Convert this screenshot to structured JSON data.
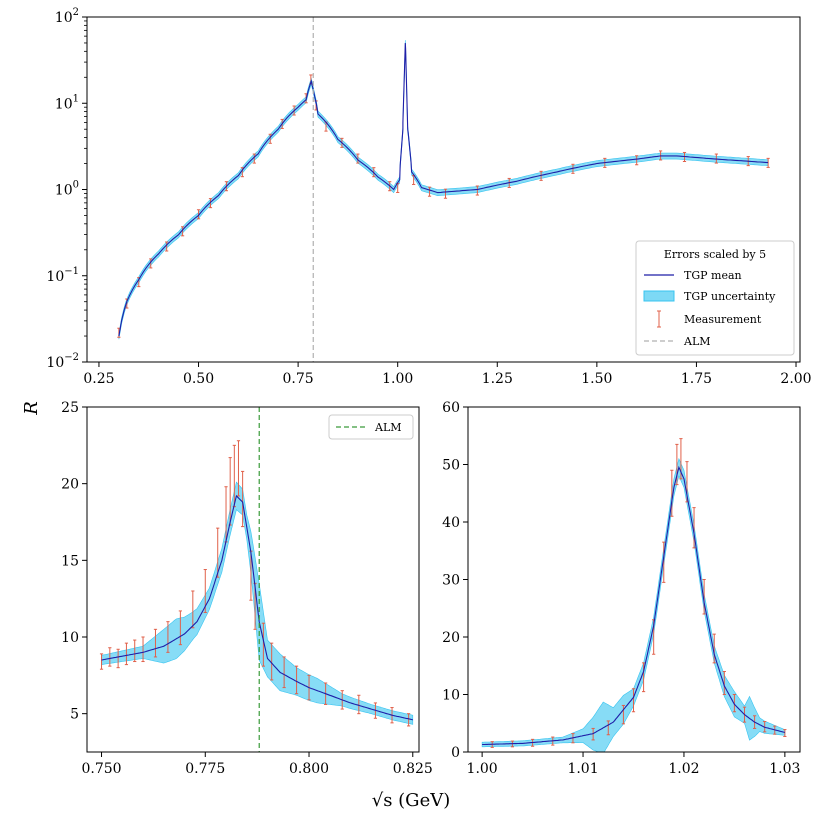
{
  "figure": {
    "ylabel": "R",
    "xlabel": "√s (GeV)"
  },
  "colors": {
    "mean": "#1f1fa8",
    "band": "#37c4f0",
    "measurement": "#e0604a",
    "alm_top": "#b0b0b0",
    "alm_bottom": "#3a9a3a"
  },
  "chart_data": [
    {
      "id": "overview",
      "type": "line",
      "yscale": "log",
      "xlim": [
        0.22,
        2.01
      ],
      "ylim": [
        0.01,
        100
      ],
      "xticks": [
        {
          "v": 0.25,
          "label": "0.25"
        },
        {
          "v": 0.5,
          "label": "0.50"
        },
        {
          "v": 0.75,
          "label": "0.75"
        },
        {
          "v": 1.0,
          "label": "1.00"
        },
        {
          "v": 1.25,
          "label": "1.25"
        },
        {
          "v": 1.5,
          "label": "1.50"
        },
        {
          "v": 1.75,
          "label": "1.75"
        },
        {
          "v": 2.0,
          "label": "2.00"
        }
      ],
      "yticks": [
        {
          "v": 0.01,
          "base": "10",
          "exp": "−2"
        },
        {
          "v": 0.1,
          "base": "10",
          "exp": "−1"
        },
        {
          "v": 1,
          "base": "10",
          "exp": "0"
        },
        {
          "v": 10,
          "base": "10",
          "exp": "1"
        },
        {
          "v": 100,
          "base": "10",
          "exp": "2"
        }
      ],
      "alm_x": 0.788,
      "mean": [
        [
          0.3,
          0.02
        ],
        [
          0.32,
          0.05
        ],
        [
          0.35,
          0.09
        ],
        [
          0.4,
          0.18
        ],
        [
          0.45,
          0.3
        ],
        [
          0.5,
          0.5
        ],
        [
          0.55,
          0.85
        ],
        [
          0.6,
          1.45
        ],
        [
          0.65,
          2.6
        ],
        [
          0.7,
          5.0
        ],
        [
          0.75,
          9.0
        ],
        [
          0.77,
          11.0
        ],
        [
          0.783,
          18.0
        ],
        [
          0.79,
          13.0
        ],
        [
          0.8,
          7.5
        ],
        [
          0.85,
          3.8
        ],
        [
          0.9,
          2.2
        ],
        [
          0.95,
          1.4
        ],
        [
          0.99,
          1.0
        ],
        [
          1.005,
          1.3
        ],
        [
          1.013,
          5.0
        ],
        [
          1.019,
          50.0
        ],
        [
          1.025,
          5.0
        ],
        [
          1.035,
          1.6
        ],
        [
          1.06,
          1.05
        ],
        [
          1.1,
          0.92
        ],
        [
          1.2,
          1.0
        ],
        [
          1.3,
          1.25
        ],
        [
          1.4,
          1.6
        ],
        [
          1.5,
          2.0
        ],
        [
          1.6,
          2.25
        ],
        [
          1.66,
          2.45
        ],
        [
          1.7,
          2.45
        ],
        [
          1.8,
          2.25
        ],
        [
          1.93,
          2.05
        ]
      ],
      "band_rel": 0.08,
      "measurements": [
        [
          0.3,
          0.022
        ],
        [
          0.32,
          0.048
        ],
        [
          0.35,
          0.085
        ],
        [
          0.38,
          0.14
        ],
        [
          0.42,
          0.22
        ],
        [
          0.46,
          0.33
        ],
        [
          0.5,
          0.52
        ],
        [
          0.53,
          0.7
        ],
        [
          0.57,
          1.1
        ],
        [
          0.61,
          1.6
        ],
        [
          0.64,
          2.3
        ],
        [
          0.68,
          3.9
        ],
        [
          0.71,
          5.8
        ],
        [
          0.74,
          8.3
        ],
        [
          0.77,
          11.5
        ],
        [
          0.782,
          19.0
        ],
        [
          0.795,
          9.5
        ],
        [
          0.82,
          5.4
        ],
        [
          0.86,
          3.5
        ],
        [
          0.9,
          2.3
        ],
        [
          0.94,
          1.6
        ],
        [
          0.98,
          1.1
        ],
        [
          1.0,
          1.05
        ],
        [
          1.04,
          1.3
        ],
        [
          1.08,
          0.95
        ],
        [
          1.12,
          0.9
        ],
        [
          1.2,
          0.98
        ],
        [
          1.28,
          1.2
        ],
        [
          1.36,
          1.45
        ],
        [
          1.44,
          1.75
        ],
        [
          1.52,
          2.05
        ],
        [
          1.6,
          2.2
        ],
        [
          1.66,
          2.5
        ],
        [
          1.72,
          2.4
        ],
        [
          1.8,
          2.3
        ],
        [
          1.88,
          2.15
        ],
        [
          1.93,
          2.05
        ]
      ],
      "legend": {
        "title": "Errors scaled by 5",
        "entries": [
          "TGP mean",
          "TGP uncertainty",
          "Measurement",
          "ALM"
        ]
      }
    },
    {
      "id": "omega",
      "type": "line",
      "yscale": "linear",
      "xlim": [
        0.7465,
        0.8265
      ],
      "ylim": [
        2.5,
        25
      ],
      "xticks": [
        {
          "v": 0.75,
          "label": "0.750"
        },
        {
          "v": 0.775,
          "label": "0.775"
        },
        {
          "v": 0.8,
          "label": "0.800"
        },
        {
          "v": 0.825,
          "label": "0.825"
        }
      ],
      "yticks": [
        {
          "v": 5,
          "label": "5"
        },
        {
          "v": 10,
          "label": "10"
        },
        {
          "v": 15,
          "label": "15"
        },
        {
          "v": 20,
          "label": "20"
        },
        {
          "v": 25,
          "label": "25"
        }
      ],
      "alm_x": 0.788,
      "mean": [
        [
          0.75,
          8.5
        ],
        [
          0.755,
          8.75
        ],
        [
          0.76,
          9.0
        ],
        [
          0.765,
          9.4
        ],
        [
          0.77,
          10.2
        ],
        [
          0.773,
          11.0
        ],
        [
          0.776,
          12.5
        ],
        [
          0.779,
          15.0
        ],
        [
          0.781,
          17.5
        ],
        [
          0.7825,
          19.2
        ],
        [
          0.784,
          18.8
        ],
        [
          0.786,
          15.5
        ],
        [
          0.788,
          11.0
        ],
        [
          0.79,
          8.6
        ],
        [
          0.793,
          7.7
        ],
        [
          0.797,
          7.1
        ],
        [
          0.8,
          6.7
        ],
        [
          0.805,
          6.2
        ],
        [
          0.81,
          5.7
        ],
        [
          0.815,
          5.3
        ],
        [
          0.82,
          4.9
        ],
        [
          0.825,
          4.6
        ]
      ],
      "band": [
        [
          0.75,
          0.3
        ],
        [
          0.76,
          0.4
        ],
        [
          0.765,
          1.1
        ],
        [
          0.768,
          1.3
        ],
        [
          0.772,
          0.9
        ],
        [
          0.776,
          0.7
        ],
        [
          0.78,
          0.8
        ],
        [
          0.7825,
          0.9
        ],
        [
          0.785,
          0.8
        ],
        [
          0.788,
          2.5
        ],
        [
          0.79,
          1.2
        ],
        [
          0.793,
          1.2
        ],
        [
          0.797,
          0.9
        ],
        [
          0.802,
          0.8
        ],
        [
          0.808,
          0.4
        ],
        [
          0.815,
          0.3
        ],
        [
          0.825,
          0.3
        ]
      ],
      "measurements": [
        [
          0.75,
          8.4,
          0.5
        ],
        [
          0.752,
          8.7,
          0.6
        ],
        [
          0.754,
          8.6,
          0.6
        ],
        [
          0.756,
          8.9,
          0.7
        ],
        [
          0.758,
          9.1,
          0.7
        ],
        [
          0.76,
          9.2,
          0.8
        ],
        [
          0.763,
          9.6,
          0.9
        ],
        [
          0.766,
          10.0,
          1.0
        ],
        [
          0.769,
          10.6,
          1.1
        ],
        [
          0.772,
          11.8,
          1.2
        ],
        [
          0.775,
          13.0,
          1.4
        ],
        [
          0.778,
          15.5,
          1.6
        ],
        [
          0.78,
          18.0,
          1.8
        ],
        [
          0.781,
          19.5,
          2.2
        ],
        [
          0.782,
          20.5,
          2.0
        ],
        [
          0.783,
          21.0,
          1.8
        ],
        [
          0.784,
          19.0,
          1.8
        ],
        [
          0.786,
          14.0,
          1.6
        ],
        [
          0.787,
          12.0,
          1.5
        ],
        [
          0.789,
          9.5,
          1.4
        ],
        [
          0.791,
          8.4,
          1.2
        ],
        [
          0.794,
          7.7,
          1.0
        ],
        [
          0.797,
          7.2,
          0.9
        ],
        [
          0.8,
          6.7,
          0.8
        ],
        [
          0.804,
          6.3,
          0.7
        ],
        [
          0.808,
          5.9,
          0.6
        ],
        [
          0.812,
          5.6,
          0.6
        ],
        [
          0.816,
          5.2,
          0.5
        ],
        [
          0.82,
          4.9,
          0.5
        ],
        [
          0.824,
          4.6,
          0.4
        ]
      ],
      "legend": {
        "entries": [
          "ALM"
        ]
      }
    },
    {
      "id": "phi",
      "type": "line",
      "yscale": "linear",
      "xlim": [
        0.9986,
        1.0315
      ],
      "ylim": [
        0,
        60
      ],
      "xticks": [
        {
          "v": 1.0,
          "label": "1.00"
        },
        {
          "v": 1.01,
          "label": "1.01"
        },
        {
          "v": 1.02,
          "label": "1.02"
        },
        {
          "v": 1.03,
          "label": "1.03"
        }
      ],
      "yticks": [
        {
          "v": 0,
          "label": "0"
        },
        {
          "v": 10,
          "label": "10"
        },
        {
          "v": 20,
          "label": "20"
        },
        {
          "v": 30,
          "label": "30"
        },
        {
          "v": 40,
          "label": "40"
        },
        {
          "v": 50,
          "label": "50"
        },
        {
          "v": 60,
          "label": "60"
        }
      ],
      "mean": [
        [
          1.0,
          1.3
        ],
        [
          1.004,
          1.5
        ],
        [
          1.008,
          2.1
        ],
        [
          1.011,
          3.2
        ],
        [
          1.013,
          5.2
        ],
        [
          1.015,
          9.5
        ],
        [
          1.016,
          14.0
        ],
        [
          1.017,
          22.0
        ],
        [
          1.018,
          34.0
        ],
        [
          1.019,
          46.0
        ],
        [
          1.0195,
          49.5
        ],
        [
          1.02,
          47.5
        ],
        [
          1.021,
          38.0
        ],
        [
          1.022,
          26.0
        ],
        [
          1.023,
          17.0
        ],
        [
          1.024,
          11.5
        ],
        [
          1.025,
          8.3
        ],
        [
          1.026,
          6.5
        ],
        [
          1.027,
          5.2
        ],
        [
          1.028,
          4.3
        ],
        [
          1.03,
          3.4
        ]
      ],
      "band": [
        [
          1.0,
          0.4
        ],
        [
          1.008,
          0.5
        ],
        [
          1.01,
          1.2
        ],
        [
          1.012,
          4.5
        ],
        [
          1.013,
          2.5
        ],
        [
          1.014,
          2.5
        ],
        [
          1.015,
          1.5
        ],
        [
          1.0195,
          1.5
        ],
        [
          1.021,
          1.5
        ],
        [
          1.023,
          1.5
        ],
        [
          1.025,
          2.2
        ],
        [
          1.026,
          1.5
        ],
        [
          1.0265,
          3.8
        ],
        [
          1.0275,
          1.2
        ],
        [
          1.03,
          0.5
        ]
      ],
      "measurements": [
        [
          1.001,
          1.3,
          0.5
        ],
        [
          1.003,
          1.4,
          0.5
        ],
        [
          1.005,
          1.6,
          0.6
        ],
        [
          1.007,
          1.9,
          0.7
        ],
        [
          1.009,
          2.4,
          0.8
        ],
        [
          1.011,
          3.1,
          1.0
        ],
        [
          1.0125,
          4.2,
          1.2
        ],
        [
          1.014,
          6.5,
          1.6
        ],
        [
          1.015,
          9.0,
          2.0
        ],
        [
          1.016,
          13.0,
          2.5
        ],
        [
          1.017,
          20.0,
          3.0
        ],
        [
          1.018,
          33.0,
          3.5
        ],
        [
          1.0188,
          45.0,
          4.0
        ],
        [
          1.0193,
          50.0,
          3.5
        ],
        [
          1.0197,
          51.0,
          3.5
        ],
        [
          1.0203,
          47.0,
          3.5
        ],
        [
          1.021,
          39.0,
          3.5
        ],
        [
          1.022,
          27.0,
          3.0
        ],
        [
          1.023,
          18.0,
          2.5
        ],
        [
          1.024,
          12.0,
          2.0
        ],
        [
          1.025,
          8.5,
          1.5
        ],
        [
          1.026,
          6.5,
          1.3
        ],
        [
          1.027,
          5.2,
          1.1
        ],
        [
          1.028,
          4.4,
          0.9
        ],
        [
          1.029,
          3.8,
          0.7
        ],
        [
          1.03,
          3.3,
          0.6
        ]
      ]
    }
  ]
}
